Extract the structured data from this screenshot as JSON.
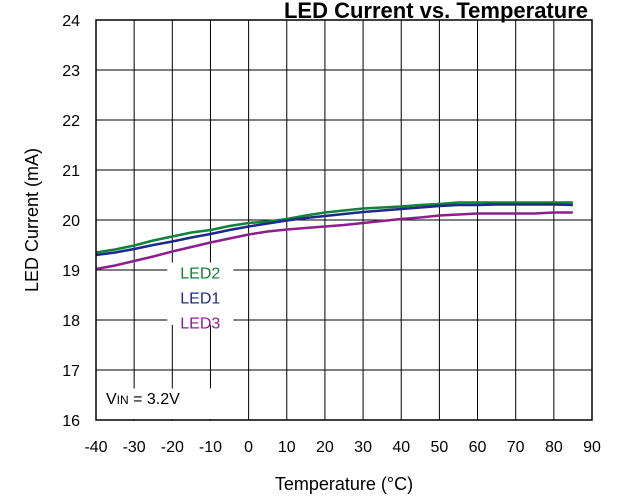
{
  "chart_data": {
    "type": "line",
    "title": "LED Current vs. Temperature",
    "xlabel": "Temperature (°C)",
    "ylabel": "LED Current (mA)",
    "xlim": [
      -40,
      90
    ],
    "ylim": [
      16,
      24
    ],
    "xticks": [
      -40,
      -30,
      -20,
      -10,
      0,
      10,
      20,
      30,
      40,
      50,
      60,
      70,
      80,
      90
    ],
    "yticks": [
      16,
      17,
      18,
      19,
      20,
      21,
      22,
      23,
      24
    ],
    "grid": true,
    "annotation": {
      "main": "V",
      "subscript": "IN",
      "rest": " = 3.2V"
    },
    "series": [
      {
        "name": "LED2",
        "color": "#12813a",
        "x": [
          -40,
          -35,
          -30,
          -25,
          -20,
          -15,
          -10,
          -5,
          0,
          5,
          10,
          15,
          20,
          25,
          30,
          35,
          40,
          45,
          50,
          55,
          60,
          65,
          70,
          75,
          80,
          85
        ],
        "y": [
          19.35,
          19.41,
          19.49,
          19.59,
          19.67,
          19.75,
          19.8,
          19.88,
          19.94,
          19.97,
          20.02,
          20.09,
          20.15,
          20.19,
          20.23,
          20.25,
          20.27,
          20.3,
          20.32,
          20.35,
          20.35,
          20.35,
          20.35,
          20.35,
          20.35,
          20.35
        ]
      },
      {
        "name": "LED1",
        "color": "#1c2a8a",
        "x": [
          -40,
          -35,
          -30,
          -25,
          -20,
          -15,
          -10,
          -5,
          0,
          5,
          10,
          15,
          20,
          25,
          30,
          35,
          40,
          45,
          50,
          55,
          60,
          65,
          70,
          75,
          80,
          85
        ],
        "y": [
          19.3,
          19.35,
          19.42,
          19.5,
          19.57,
          19.65,
          19.72,
          19.8,
          19.87,
          19.93,
          19.99,
          20.04,
          20.08,
          20.12,
          20.16,
          20.19,
          20.22,
          20.25,
          20.28,
          20.3,
          20.3,
          20.31,
          20.31,
          20.31,
          20.31,
          20.3
        ]
      },
      {
        "name": "LED3",
        "color": "#8c1f8c",
        "x": [
          -40,
          -35,
          -30,
          -25,
          -20,
          -15,
          -10,
          -5,
          0,
          5,
          10,
          15,
          20,
          25,
          30,
          35,
          40,
          45,
          50,
          55,
          60,
          65,
          70,
          75,
          80,
          85
        ],
        "y": [
          19.02,
          19.09,
          19.18,
          19.27,
          19.37,
          19.46,
          19.55,
          19.63,
          19.71,
          19.77,
          19.81,
          19.84,
          19.87,
          19.9,
          19.94,
          19.98,
          20.02,
          20.05,
          20.09,
          20.11,
          20.13,
          20.13,
          20.13,
          20.13,
          20.15,
          20.15
        ]
      }
    ]
  }
}
